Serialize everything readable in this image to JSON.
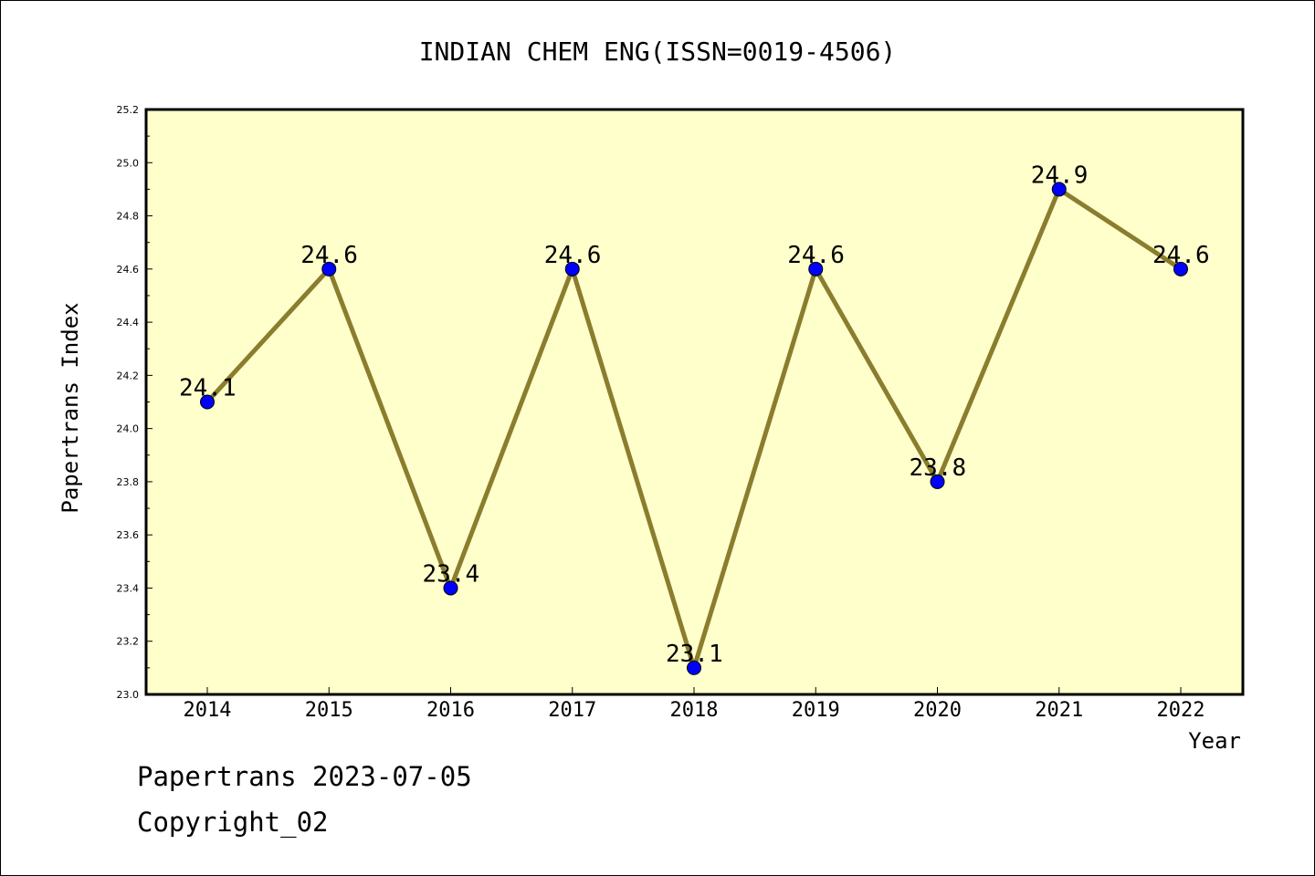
{
  "chart_data": {
    "type": "line",
    "title": "INDIAN CHEM ENG(ISSN=0019-4506)",
    "xlabel": "Year",
    "ylabel": "Papertrans Index",
    "categories": [
      "2014",
      "2015",
      "2016",
      "2017",
      "2018",
      "2019",
      "2020",
      "2021",
      "2022"
    ],
    "series": [
      {
        "values": [
          24.1,
          24.6,
          23.4,
          24.6,
          23.1,
          24.6,
          23.8,
          24.9,
          24.6
        ],
        "labels": [
          "24.1",
          "24.6",
          "23.4",
          "24.6",
          "23.1",
          "24.6",
          "23.8",
          "24.9",
          "24.6"
        ]
      }
    ],
    "ylim": [
      23.0,
      25.2
    ],
    "yticks": [
      "23.0",
      "23.2",
      "23.4",
      "23.6",
      "23.8",
      "24.0",
      "24.2",
      "24.4",
      "24.6",
      "24.8",
      "25.0",
      "25.2"
    ],
    "grid": false,
    "colors": {
      "plot_background": "#ffffcc",
      "line": "#8b7d2e",
      "marker": "#0000ff"
    }
  },
  "footer": {
    "line1": "Papertrans 2023-07-05",
    "line2": "Copyright_02"
  }
}
